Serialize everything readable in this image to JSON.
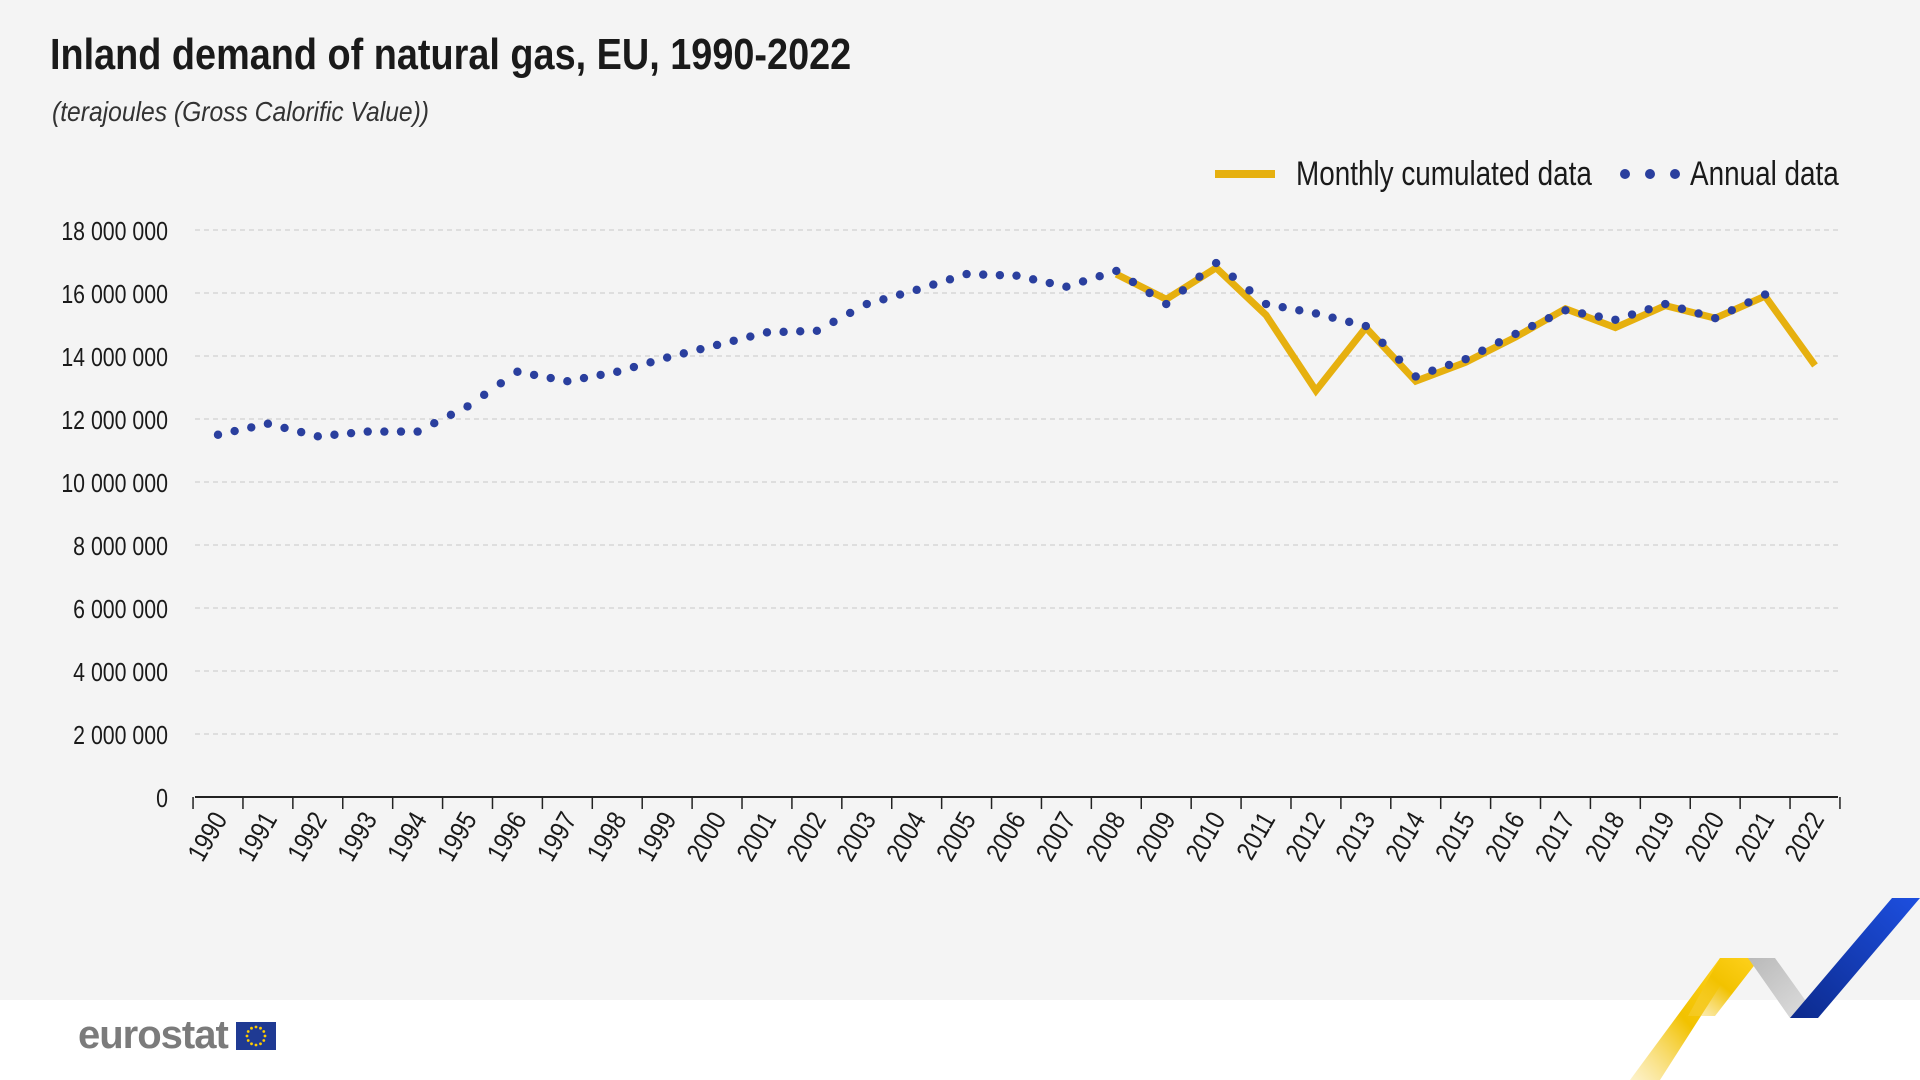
{
  "chart_data": {
    "type": "line",
    "title": "Inland demand of natural gas, EU, 1990-2022",
    "subtitle": "(terajoules (Gross Calorific Value))",
    "x": [
      "1990",
      "1991",
      "1992",
      "1993",
      "1994",
      "1995",
      "1996",
      "1997",
      "1998",
      "1999",
      "2000",
      "2001",
      "2002",
      "2003",
      "2004",
      "2005",
      "2006",
      "2007",
      "2008",
      "2009",
      "2010",
      "2011",
      "2012",
      "2013",
      "2014",
      "2015",
      "2016",
      "2017",
      "2018",
      "2019",
      "2020",
      "2021",
      "2022"
    ],
    "ylim": [
      0,
      18000000
    ],
    "yticks": [
      0,
      2000000,
      4000000,
      6000000,
      8000000,
      10000000,
      12000000,
      14000000,
      16000000,
      18000000
    ],
    "ytick_labels": [
      "0",
      "2 000 000",
      "4 000 000",
      "6 000 000",
      "8 000 000",
      "10 000 000",
      "12 000 000",
      "14 000 000",
      "16 000 000",
      "18 000 000"
    ],
    "grid": "horizontal dashed",
    "legend_position": "top-right",
    "series": [
      {
        "name": "Monthly cumulated data",
        "style": "solid",
        "color": "#e6b00f",
        "values": [
          null,
          null,
          null,
          null,
          null,
          null,
          null,
          null,
          null,
          null,
          null,
          null,
          null,
          null,
          null,
          null,
          null,
          null,
          16600000,
          15800000,
          16800000,
          15300000,
          12900000,
          14900000,
          13200000,
          13800000,
          14600000,
          15500000,
          14900000,
          15600000,
          15200000,
          15900000,
          13700000
        ]
      },
      {
        "name": "Annual data",
        "style": "dotted",
        "color": "#2a3f9e",
        "values": [
          11500000,
          11850000,
          11450000,
          11600000,
          11600000,
          12400000,
          13500000,
          13200000,
          13500000,
          13950000,
          14350000,
          14750000,
          14800000,
          15650000,
          16100000,
          16600000,
          16550000,
          16200000,
          16700000,
          15650000,
          16950000,
          15650000,
          15350000,
          14950000,
          13350000,
          13900000,
          14700000,
          15450000,
          15150000,
          15650000,
          15200000,
          15950000,
          null
        ]
      }
    ]
  },
  "logo": {
    "text": "eurostat"
  },
  "colors": {
    "background": "#f4f4f4",
    "monthly": "#e6b00f",
    "annual": "#2a3f9e",
    "grid": "#c8c8c8",
    "axis": "#222222"
  }
}
